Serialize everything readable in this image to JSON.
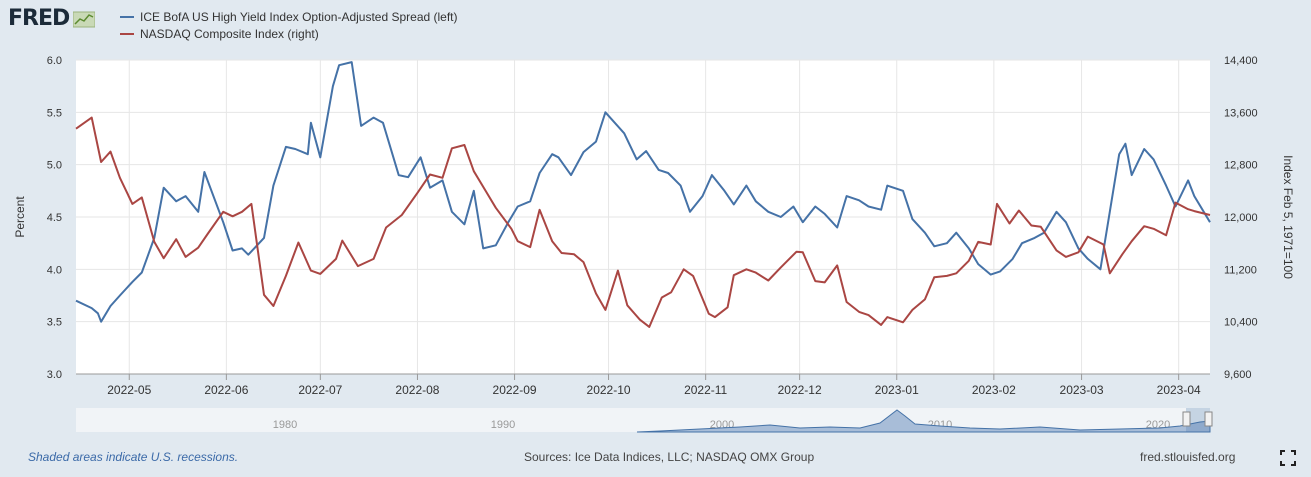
{
  "logo": {
    "text": "FRED"
  },
  "legend": [
    {
      "label": "ICE BofA US High Yield Index Option-Adjusted Spread (left)",
      "color": "#4572a7"
    },
    {
      "label": "NASDAQ Composite Index (right)",
      "color": "#aa4643"
    }
  ],
  "footer": {
    "recession_note": "Shaded areas indicate U.S. recessions.",
    "sources": "Sources: Ice Data Indices, LLC; NASDAQ OMX Group",
    "site": "fred.stlouisfed.org"
  },
  "navigator": {
    "labels": [
      "1980",
      "1990",
      "2000",
      "2010",
      "2020"
    ]
  },
  "chart_data": {
    "type": "line",
    "x_type": "date",
    "x_range": [
      "2022-04-14",
      "2023-04-11"
    ],
    "x_tick_labels": [
      "2022-05",
      "2022-06",
      "2022-07",
      "2022-08",
      "2022-09",
      "2022-10",
      "2022-11",
      "2022-12",
      "2023-01",
      "2023-02",
      "2023-03",
      "2023-04"
    ],
    "y_left": {
      "label": "Percent",
      "range": [
        3.0,
        6.0
      ],
      "ticks": [
        "3.0",
        "3.5",
        "4.0",
        "4.5",
        "5.0",
        "5.5",
        "6.0"
      ]
    },
    "y_right": {
      "label": "Index Feb 5, 1971=100",
      "range": [
        9600,
        14400
      ],
      "ticks": [
        "9,600",
        "10,400",
        "11,200",
        "12,000",
        "12,800",
        "13,600",
        "14,400"
      ]
    },
    "grid": true,
    "series": [
      {
        "name": "ICE BofA US High Yield Index Option-Adjusted Spread (left)",
        "axis": "left",
        "color": "#4572a7",
        "points": [
          [
            "2022-04-14",
            3.7
          ],
          [
            "2022-04-19",
            3.63
          ],
          [
            "2022-04-21",
            3.58
          ],
          [
            "2022-04-22",
            3.5
          ],
          [
            "2022-04-25",
            3.65
          ],
          [
            "2022-04-28",
            3.75
          ],
          [
            "2022-05-02",
            3.88
          ],
          [
            "2022-05-05",
            3.97
          ],
          [
            "2022-05-09",
            4.3
          ],
          [
            "2022-05-12",
            4.78
          ],
          [
            "2022-05-16",
            4.65
          ],
          [
            "2022-05-19",
            4.7
          ],
          [
            "2022-05-23",
            4.55
          ],
          [
            "2022-05-25",
            4.93
          ],
          [
            "2022-05-31",
            4.45
          ],
          [
            "2022-06-03",
            4.18
          ],
          [
            "2022-06-06",
            4.2
          ],
          [
            "2022-06-08",
            4.14
          ],
          [
            "2022-06-13",
            4.3
          ],
          [
            "2022-06-16",
            4.8
          ],
          [
            "2022-06-20",
            5.17
          ],
          [
            "2022-06-23",
            5.15
          ],
          [
            "2022-06-27",
            5.1
          ],
          [
            "2022-06-28",
            5.4
          ],
          [
            "2022-07-01",
            5.07
          ],
          [
            "2022-07-05",
            5.75
          ],
          [
            "2022-07-07",
            5.95
          ],
          [
            "2022-07-11",
            5.98
          ],
          [
            "2022-07-14",
            5.37
          ],
          [
            "2022-07-18",
            5.45
          ],
          [
            "2022-07-21",
            5.4
          ],
          [
            "2022-07-26",
            4.9
          ],
          [
            "2022-07-29",
            4.88
          ],
          [
            "2022-08-02",
            5.07
          ],
          [
            "2022-08-05",
            4.78
          ],
          [
            "2022-08-09",
            4.85
          ],
          [
            "2022-08-12",
            4.55
          ],
          [
            "2022-08-16",
            4.43
          ],
          [
            "2022-08-19",
            4.75
          ],
          [
            "2022-08-22",
            4.2
          ],
          [
            "2022-08-26",
            4.23
          ],
          [
            "2022-08-30",
            4.45
          ],
          [
            "2022-09-02",
            4.6
          ],
          [
            "2022-09-06",
            4.65
          ],
          [
            "2022-09-09",
            4.92
          ],
          [
            "2022-09-13",
            5.1
          ],
          [
            "2022-09-15",
            5.07
          ],
          [
            "2022-09-19",
            4.9
          ],
          [
            "2022-09-23",
            5.12
          ],
          [
            "2022-09-27",
            5.22
          ],
          [
            "2022-09-30",
            5.5
          ],
          [
            "2022-10-03",
            5.4
          ],
          [
            "2022-10-06",
            5.3
          ],
          [
            "2022-10-10",
            5.05
          ],
          [
            "2022-10-13",
            5.13
          ],
          [
            "2022-10-17",
            4.95
          ],
          [
            "2022-10-20",
            4.92
          ],
          [
            "2022-10-24",
            4.8
          ],
          [
            "2022-10-27",
            4.55
          ],
          [
            "2022-10-31",
            4.7
          ],
          [
            "2022-11-03",
            4.9
          ],
          [
            "2022-11-07",
            4.75
          ],
          [
            "2022-11-10",
            4.62
          ],
          [
            "2022-11-14",
            4.8
          ],
          [
            "2022-11-17",
            4.65
          ],
          [
            "2022-11-21",
            4.55
          ],
          [
            "2022-11-25",
            4.5
          ],
          [
            "2022-11-29",
            4.6
          ],
          [
            "2022-12-02",
            4.45
          ],
          [
            "2022-12-06",
            4.6
          ],
          [
            "2022-12-09",
            4.53
          ],
          [
            "2022-12-13",
            4.4
          ],
          [
            "2022-12-16",
            4.7
          ],
          [
            "2022-12-20",
            4.66
          ],
          [
            "2022-12-23",
            4.6
          ],
          [
            "2022-12-27",
            4.57
          ],
          [
            "2022-12-29",
            4.8
          ],
          [
            "2023-01-03",
            4.75
          ],
          [
            "2023-01-06",
            4.48
          ],
          [
            "2023-01-10",
            4.35
          ],
          [
            "2023-01-13",
            4.22
          ],
          [
            "2023-01-17",
            4.25
          ],
          [
            "2023-01-20",
            4.35
          ],
          [
            "2023-01-24",
            4.2
          ],
          [
            "2023-01-27",
            4.05
          ],
          [
            "2023-01-31",
            3.95
          ],
          [
            "2023-02-03",
            3.98
          ],
          [
            "2023-02-07",
            4.1
          ],
          [
            "2023-02-10",
            4.25
          ],
          [
            "2023-02-14",
            4.3
          ],
          [
            "2023-02-17",
            4.35
          ],
          [
            "2023-02-21",
            4.55
          ],
          [
            "2023-02-24",
            4.45
          ],
          [
            "2023-02-28",
            4.2
          ],
          [
            "2023-03-03",
            4.1
          ],
          [
            "2023-03-07",
            4.0
          ],
          [
            "2023-03-10",
            4.55
          ],
          [
            "2023-03-13",
            5.1
          ],
          [
            "2023-03-15",
            5.2
          ],
          [
            "2023-03-17",
            4.9
          ],
          [
            "2023-03-21",
            5.15
          ],
          [
            "2023-03-24",
            5.05
          ],
          [
            "2023-03-28",
            4.8
          ],
          [
            "2023-03-31",
            4.6
          ],
          [
            "2023-04-04",
            4.85
          ],
          [
            "2023-04-06",
            4.7
          ],
          [
            "2023-04-11",
            4.45
          ]
        ]
      },
      {
        "name": "NASDAQ Composite Index (right)",
        "axis": "right",
        "color": "#aa4643",
        "points": [
          [
            "2022-04-14",
            13350
          ],
          [
            "2022-04-19",
            13520
          ],
          [
            "2022-04-22",
            12840
          ],
          [
            "2022-04-25",
            13000
          ],
          [
            "2022-04-28",
            12600
          ],
          [
            "2022-05-02",
            12200
          ],
          [
            "2022-05-05",
            12300
          ],
          [
            "2022-05-09",
            11620
          ],
          [
            "2022-05-12",
            11370
          ],
          [
            "2022-05-16",
            11660
          ],
          [
            "2022-05-19",
            11390
          ],
          [
            "2022-05-23",
            11530
          ],
          [
            "2022-05-26",
            11740
          ],
          [
            "2022-05-31",
            12080
          ],
          [
            "2022-06-03",
            12010
          ],
          [
            "2022-06-06",
            12080
          ],
          [
            "2022-06-09",
            12200
          ],
          [
            "2022-06-13",
            10810
          ],
          [
            "2022-06-16",
            10640
          ],
          [
            "2022-06-20",
            11100
          ],
          [
            "2022-06-24",
            11610
          ],
          [
            "2022-06-28",
            11180
          ],
          [
            "2022-07-01",
            11130
          ],
          [
            "2022-07-06",
            11360
          ],
          [
            "2022-07-08",
            11640
          ],
          [
            "2022-07-13",
            11250
          ],
          [
            "2022-07-18",
            11360
          ],
          [
            "2022-07-22",
            11840
          ],
          [
            "2022-07-27",
            12030
          ],
          [
            "2022-08-01",
            12370
          ],
          [
            "2022-08-05",
            12650
          ],
          [
            "2022-08-09",
            12600
          ],
          [
            "2022-08-12",
            13050
          ],
          [
            "2022-08-16",
            13100
          ],
          [
            "2022-08-19",
            12700
          ],
          [
            "2022-08-23",
            12380
          ],
          [
            "2022-08-26",
            12140
          ],
          [
            "2022-08-31",
            11820
          ],
          [
            "2022-09-02",
            11630
          ],
          [
            "2022-09-06",
            11540
          ],
          [
            "2022-09-09",
            12110
          ],
          [
            "2022-09-13",
            11630
          ],
          [
            "2022-09-16",
            11450
          ],
          [
            "2022-09-20",
            11430
          ],
          [
            "2022-09-23",
            11310
          ],
          [
            "2022-09-27",
            10830
          ],
          [
            "2022-09-30",
            10580
          ],
          [
            "2022-10-04",
            11180
          ],
          [
            "2022-10-07",
            10650
          ],
          [
            "2022-10-11",
            10430
          ],
          [
            "2022-10-14",
            10320
          ],
          [
            "2022-10-18",
            10770
          ],
          [
            "2022-10-21",
            10850
          ],
          [
            "2022-10-25",
            11200
          ],
          [
            "2022-10-28",
            11100
          ],
          [
            "2022-11-02",
            10520
          ],
          [
            "2022-11-04",
            10470
          ],
          [
            "2022-11-08",
            10620
          ],
          [
            "2022-11-10",
            11110
          ],
          [
            "2022-11-14",
            11200
          ],
          [
            "2022-11-17",
            11150
          ],
          [
            "2022-11-21",
            11030
          ],
          [
            "2022-11-25",
            11230
          ],
          [
            "2022-11-30",
            11470
          ],
          [
            "2022-12-02",
            11460
          ],
          [
            "2022-12-06",
            11020
          ],
          [
            "2022-12-09",
            11000
          ],
          [
            "2022-12-13",
            11260
          ],
          [
            "2022-12-16",
            10700
          ],
          [
            "2022-12-20",
            10550
          ],
          [
            "2022-12-23",
            10500
          ],
          [
            "2022-12-27",
            10350
          ],
          [
            "2022-12-29",
            10470
          ],
          [
            "2023-01-03",
            10390
          ],
          [
            "2023-01-06",
            10580
          ],
          [
            "2023-01-10",
            10740
          ],
          [
            "2023-01-13",
            11080
          ],
          [
            "2023-01-17",
            11100
          ],
          [
            "2023-01-20",
            11140
          ],
          [
            "2023-01-24",
            11330
          ],
          [
            "2023-01-27",
            11620
          ],
          [
            "2023-01-31",
            11580
          ],
          [
            "2023-02-02",
            12200
          ],
          [
            "2023-02-06",
            11900
          ],
          [
            "2023-02-09",
            12100
          ],
          [
            "2023-02-13",
            11870
          ],
          [
            "2023-02-16",
            11850
          ],
          [
            "2023-02-21",
            11490
          ],
          [
            "2023-02-24",
            11390
          ],
          [
            "2023-02-28",
            11460
          ],
          [
            "2023-03-03",
            11700
          ],
          [
            "2023-03-08",
            11580
          ],
          [
            "2023-03-10",
            11140
          ],
          [
            "2023-03-14",
            11430
          ],
          [
            "2023-03-17",
            11630
          ],
          [
            "2023-03-21",
            11860
          ],
          [
            "2023-03-24",
            11820
          ],
          [
            "2023-03-28",
            11720
          ],
          [
            "2023-03-31",
            12220
          ],
          [
            "2023-04-04",
            12120
          ],
          [
            "2023-04-06",
            12090
          ],
          [
            "2023-04-11",
            12030
          ]
        ]
      }
    ]
  }
}
